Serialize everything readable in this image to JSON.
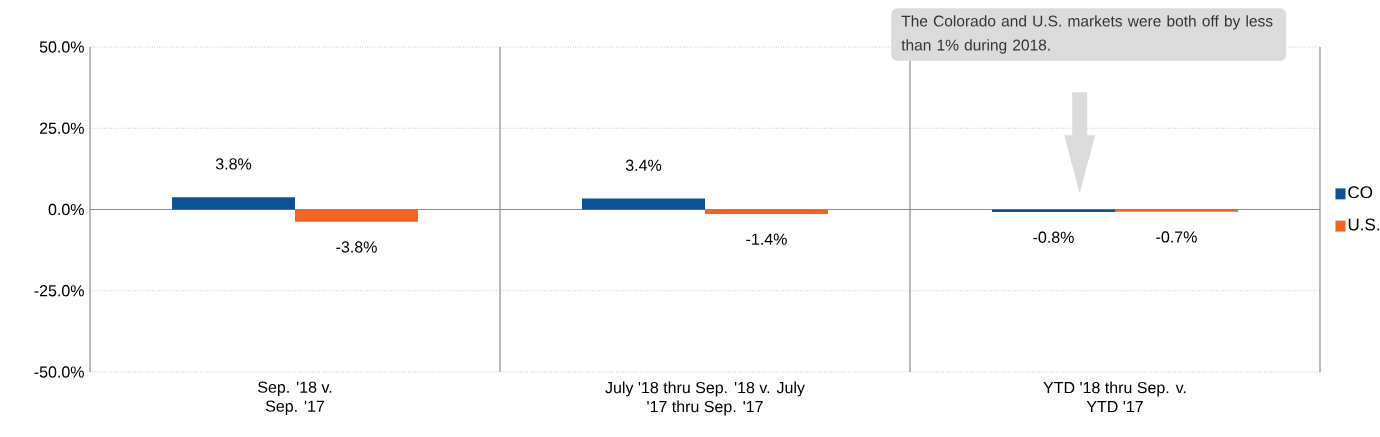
{
  "chart_data": {
    "type": "bar",
    "categories": [
      "Sep. '18 v. Sep. '17",
      "July '18 thru Sep. '18 v. July '17 thru Sep. '17",
      "YTD '18 thru Sep. v. YTD '17"
    ],
    "series": [
      {
        "name": "CO",
        "color": "#0b5394",
        "values": [
          3.8,
          3.4,
          -0.8
        ],
        "value_labels": [
          "3.8%",
          "3.4%",
          "-0.8%"
        ]
      },
      {
        "name": "U.S.",
        "color": "#f26522",
        "values": [
          -3.8,
          -1.4,
          -0.7
        ],
        "value_labels": [
          "-3.8%",
          "-1.4%",
          "-0.7%"
        ]
      }
    ],
    "ylim": [
      -50,
      50
    ],
    "yticks": [
      {
        "value": -50,
        "label": "-50.0%"
      },
      {
        "value": -25,
        "label": "-25.0%"
      },
      {
        "value": 0,
        "label": "0.0%"
      },
      {
        "value": 25,
        "label": "25.0%"
      },
      {
        "value": 50,
        "label": "50.0%"
      }
    ],
    "grid": "y",
    "legend": "right",
    "annotations": [
      "The Colorado and U.S. markets were both off by less than 1% during 2018."
    ]
  }
}
